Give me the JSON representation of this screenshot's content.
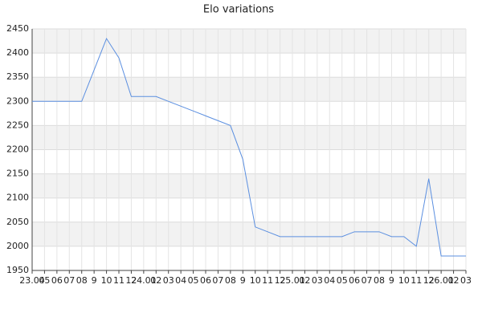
{
  "chart_data": {
    "type": "line",
    "title": "Elo variations",
    "categories": [
      "23.04",
      "05",
      "06",
      "07",
      "08",
      "9",
      "10",
      "11",
      "12",
      "24.01",
      "02",
      "03",
      "04",
      "05",
      "06",
      "07",
      "08",
      "9",
      "10",
      "11",
      "12",
      "25.01",
      "02",
      "03",
      "04",
      "05",
      "06",
      "07",
      "08",
      "9",
      "10",
      "11",
      "12",
      "26.01",
      "02",
      "03"
    ],
    "series": [
      {
        "name": "Elo",
        "color": "#5b8fe0",
        "values": [
          2300,
          2300,
          2300,
          2300,
          2300,
          2365,
          2430,
          2390,
          2310,
          2310,
          2310,
          2300,
          2290,
          2280,
          2270,
          2260,
          2250,
          2180,
          2040,
          2030,
          2020,
          2020,
          2020,
          2020,
          2020,
          2020,
          2030,
          2030,
          2030,
          2020,
          2020,
          2000,
          2140,
          1980,
          1980,
          1980
        ]
      }
    ],
    "ylim": [
      1950,
      2450
    ],
    "yticks": [
      1950,
      2000,
      2050,
      2100,
      2150,
      2200,
      2250,
      2300,
      2350,
      2400,
      2450
    ],
    "grid": true,
    "alternate_bands": true,
    "legend": false
  }
}
